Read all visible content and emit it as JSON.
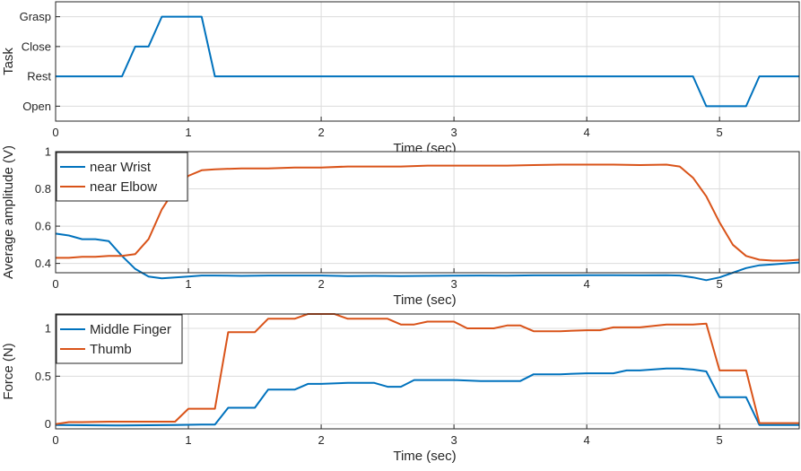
{
  "chart_data": [
    {
      "type": "line",
      "xlabel": "Time (sec)",
      "ylabel": "Task",
      "xlim": [
        0,
        5.6
      ],
      "ylim": [
        -0.5,
        3.5
      ],
      "x_ticks": [
        "0",
        "1",
        "2",
        "3",
        "4",
        "5"
      ],
      "y_tick_labels": [
        "Open",
        "Rest",
        "Close",
        "Grasp"
      ],
      "grid": true,
      "legend": "none",
      "series": [
        {
          "color": "#0072BD",
          "x": [
            0,
            0.5,
            0.6,
            0.7,
            0.8,
            0.9,
            1.0,
            1.1,
            1.2,
            4.8,
            4.9,
            5.0,
            5.1,
            5.2,
            5.3,
            5.6
          ],
          "y": [
            1,
            1,
            2,
            2,
            3,
            3,
            3,
            3,
            1,
            1,
            0,
            0,
            0,
            0,
            1,
            1
          ]
        }
      ]
    },
    {
      "type": "line",
      "xlabel": "Time (sec)",
      "ylabel": "Average amplitude (V)",
      "xlim": [
        0,
        5.6
      ],
      "ylim": [
        0.35,
        1.0
      ],
      "x_ticks": [
        "0",
        "1",
        "2",
        "3",
        "4",
        "5"
      ],
      "y_ticks": [
        "0.4",
        "0.6",
        "0.8",
        "1"
      ],
      "grid": true,
      "legend": "top-left",
      "series": [
        {
          "name": "near Wrist",
          "color": "#0072BD",
          "x": [
            0,
            0.1,
            0.2,
            0.3,
            0.4,
            0.5,
            0.6,
            0.7,
            0.8,
            0.9,
            1.0,
            1.1,
            1.2,
            1.4,
            1.6,
            1.8,
            2.0,
            2.2,
            2.4,
            2.6,
            2.8,
            3.0,
            3.2,
            3.4,
            3.6,
            3.8,
            4.0,
            4.2,
            4.4,
            4.6,
            4.7,
            4.8,
            4.9,
            5.0,
            5.1,
            5.2,
            5.3,
            5.4,
            5.5,
            5.6
          ],
          "y": [
            0.56,
            0.55,
            0.53,
            0.53,
            0.52,
            0.44,
            0.37,
            0.33,
            0.32,
            0.325,
            0.33,
            0.335,
            0.335,
            0.333,
            0.335,
            0.335,
            0.335,
            0.332,
            0.333,
            0.332,
            0.333,
            0.334,
            0.335,
            0.334,
            0.336,
            0.336,
            0.337,
            0.337,
            0.336,
            0.337,
            0.335,
            0.325,
            0.31,
            0.325,
            0.35,
            0.375,
            0.39,
            0.395,
            0.4,
            0.405
          ]
        },
        {
          "name": "near Elbow",
          "color": "#D95319",
          "x": [
            0,
            0.1,
            0.2,
            0.3,
            0.4,
            0.5,
            0.6,
            0.7,
            0.8,
            0.9,
            1.0,
            1.1,
            1.2,
            1.4,
            1.6,
            1.8,
            2.0,
            2.2,
            2.4,
            2.6,
            2.8,
            3.0,
            3.2,
            3.4,
            3.6,
            3.8,
            4.0,
            4.2,
            4.4,
            4.6,
            4.7,
            4.8,
            4.9,
            5.0,
            5.1,
            5.2,
            5.3,
            5.4,
            5.5,
            5.6
          ],
          "y": [
            0.43,
            0.43,
            0.435,
            0.435,
            0.44,
            0.44,
            0.45,
            0.53,
            0.69,
            0.8,
            0.87,
            0.9,
            0.905,
            0.91,
            0.91,
            0.915,
            0.915,
            0.92,
            0.92,
            0.92,
            0.925,
            0.925,
            0.925,
            0.925,
            0.928,
            0.93,
            0.93,
            0.93,
            0.928,
            0.93,
            0.92,
            0.86,
            0.76,
            0.62,
            0.5,
            0.44,
            0.42,
            0.415,
            0.415,
            0.42
          ]
        }
      ]
    },
    {
      "type": "line",
      "xlabel": "Time (sec)",
      "ylabel": "Force (N)",
      "xlim": [
        0,
        5.6
      ],
      "ylim": [
        -0.05,
        1.15
      ],
      "x_ticks": [
        "0",
        "1",
        "2",
        "3",
        "4",
        "5"
      ],
      "y_ticks": [
        "0",
        "0.5",
        "1"
      ],
      "grid": true,
      "legend": "top-left",
      "series": [
        {
          "name": "Middle Finger",
          "color": "#0072BD",
          "x": [
            0,
            0.5,
            0.9,
            1.1,
            1.2,
            1.3,
            1.5,
            1.6,
            1.8,
            1.9,
            2.0,
            2.2,
            2.4,
            2.5,
            2.6,
            2.7,
            2.8,
            3.0,
            3.2,
            3.4,
            3.5,
            3.6,
            3.8,
            4.0,
            4.2,
            4.3,
            4.4,
            4.6,
            4.7,
            4.8,
            4.9,
            5.0,
            5.1,
            5.2,
            5.3,
            5.6
          ],
          "y": [
            -0.01,
            -0.015,
            -0.01,
            -0.005,
            -0.005,
            0.17,
            0.17,
            0.36,
            0.36,
            0.42,
            0.42,
            0.43,
            0.43,
            0.39,
            0.39,
            0.46,
            0.46,
            0.46,
            0.45,
            0.45,
            0.45,
            0.52,
            0.52,
            0.53,
            0.53,
            0.56,
            0.56,
            0.58,
            0.58,
            0.57,
            0.55,
            0.28,
            0.28,
            0.28,
            -0.01,
            -0.01
          ]
        },
        {
          "name": "Thumb",
          "color": "#D95319",
          "x": [
            0,
            0.1,
            0.2,
            0.4,
            0.6,
            0.9,
            1.0,
            1.1,
            1.2,
            1.3,
            1.5,
            1.6,
            1.8,
            1.9,
            2.0,
            2.1,
            2.2,
            2.3,
            2.5,
            2.6,
            2.7,
            2.8,
            2.9,
            3.0,
            3.1,
            3.2,
            3.3,
            3.4,
            3.5,
            3.6,
            3.8,
            4.0,
            4.1,
            4.2,
            4.3,
            4.4,
            4.6,
            4.7,
            4.8,
            4.9,
            5.0,
            5.1,
            5.2,
            5.3,
            5.4,
            5.6
          ],
          "y": [
            0.0,
            0.02,
            0.02,
            0.025,
            0.025,
            0.025,
            0.16,
            0.16,
            0.16,
            0.96,
            0.96,
            1.1,
            1.1,
            1.15,
            1.15,
            1.15,
            1.1,
            1.1,
            1.1,
            1.04,
            1.04,
            1.07,
            1.07,
            1.07,
            1.0,
            1.0,
            1.0,
            1.03,
            1.03,
            0.97,
            0.97,
            0.98,
            0.98,
            1.01,
            1.01,
            1.01,
            1.04,
            1.04,
            1.04,
            1.05,
            0.56,
            0.56,
            0.56,
            0.01,
            0.01,
            0.01
          ]
        }
      ]
    }
  ]
}
